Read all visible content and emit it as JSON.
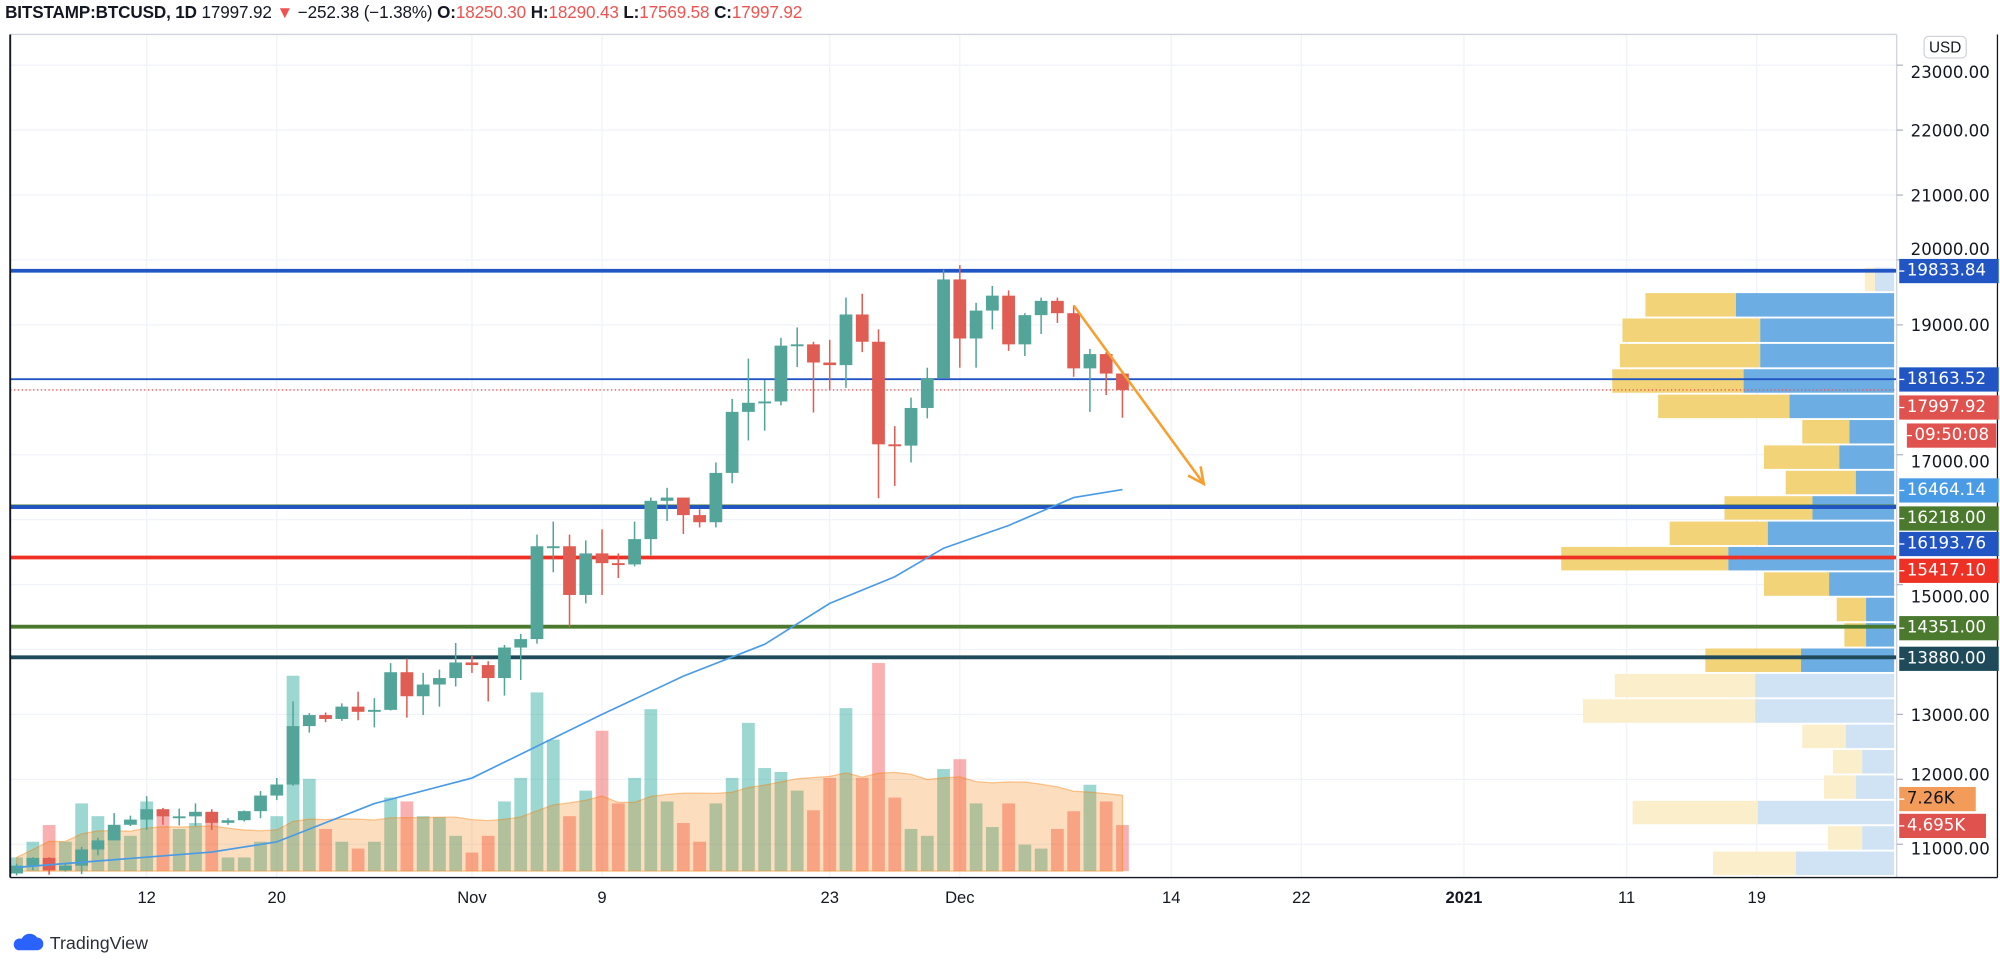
{
  "header": {
    "symbol": "BITSTAMP:BTCUSD, 1D",
    "last": "17997.92",
    "change_arrow": "▼",
    "change": "−252.38 (−1.38%)",
    "o_label": "O:",
    "o": "18250.30",
    "h_label": "H:",
    "h": "18290.43",
    "l_label": "L:",
    "l": "17569.58",
    "c_label": "C:",
    "c": "17997.92"
  },
  "currency_button": "USD",
  "brand": "TradingView",
  "colors": {
    "up": "#26a69a",
    "down": "#ef5350",
    "ma": "#4a9be6",
    "volume_ma": "#f57c00",
    "arrow": "#f5a030",
    "profile_up": "#f2d377",
    "profile_down": "#6caee3"
  },
  "chart_data": {
    "type": "candlestick",
    "price_axis": {
      "ticks": [
        "23000.00",
        "22000.00",
        "21000.00",
        "20000.00",
        "19000.00",
        "17000.00",
        "15000.00",
        "13000.00",
        "12000.00",
        "11000.00"
      ],
      "tick_values": [
        23000,
        22000,
        21000,
        20000,
        19000,
        17000,
        15000,
        13000,
        12000,
        11000
      ],
      "range": [
        10300,
        23500
      ]
    },
    "time_axis": [
      {
        "label": "12",
        "date": "2020-10-12"
      },
      {
        "label": "20",
        "date": "2020-10-20"
      },
      {
        "label": "Nov",
        "date": "2020-11-01"
      },
      {
        "label": "9",
        "date": "2020-11-09"
      },
      {
        "label": "23",
        "date": "2020-11-23"
      },
      {
        "label": "Dec",
        "date": "2020-12-01"
      },
      {
        "label": "14",
        "date": "2020-12-14"
      },
      {
        "label": "22",
        "date": "2020-12-22"
      },
      {
        "label": "2021",
        "date": "2021-01-01"
      },
      {
        "label": "11",
        "date": "2021-01-11"
      },
      {
        "label": "19",
        "date": "2021-01-19"
      }
    ],
    "grid": true,
    "candles_start": "2020-10-04",
    "candles": [
      [
        10550,
        10700,
        10520,
        10670
      ],
      [
        10670,
        10800,
        10600,
        10790
      ],
      [
        10790,
        10800,
        10530,
        10600
      ],
      [
        10600,
        10700,
        10580,
        10670
      ],
      [
        10670,
        10960,
        10540,
        10920
      ],
      [
        10920,
        11100,
        10830,
        11060
      ],
      [
        11060,
        11480,
        11060,
        11300
      ],
      [
        11300,
        11440,
        11280,
        11380
      ],
      [
        11380,
        11740,
        11220,
        11540
      ],
      [
        11540,
        11560,
        11300,
        11430
      ],
      [
        11430,
        11550,
        11290,
        11430
      ],
      [
        11430,
        11630,
        11280,
        11500
      ],
      [
        11500,
        11540,
        11220,
        11330
      ],
      [
        11330,
        11400,
        11300,
        11370
      ],
      [
        11370,
        11520,
        11350,
        11510
      ],
      [
        11510,
        11820,
        11400,
        11750
      ],
      [
        11750,
        12020,
        11680,
        11920
      ],
      [
        11920,
        13200,
        11900,
        12820
      ],
      [
        12820,
        13020,
        12720,
        12990
      ],
      [
        12990,
        13030,
        12880,
        12930
      ],
      [
        12930,
        13170,
        12900,
        13120
      ],
      [
        13120,
        13350,
        12910,
        13040
      ],
      [
        13040,
        13250,
        12800,
        13070
      ],
      [
        13070,
        13790,
        13060,
        13650
      ],
      [
        13650,
        13860,
        12950,
        13280
      ],
      [
        13280,
        13640,
        12990,
        13460
      ],
      [
        13460,
        13690,
        13120,
        13560
      ],
      [
        13560,
        14100,
        13430,
        13800
      ],
      [
        13800,
        13900,
        13640,
        13760
      ],
      [
        13760,
        13820,
        13200,
        13560
      ],
      [
        13560,
        14070,
        13290,
        14030
      ],
      [
        14030,
        14240,
        13530,
        14160
      ],
      [
        14160,
        15770,
        14090,
        15590
      ],
      [
        15590,
        15970,
        15190,
        15590
      ],
      [
        15590,
        15770,
        14350,
        14840
      ],
      [
        14840,
        15680,
        14710,
        15480
      ],
      [
        15480,
        15850,
        14840,
        15330
      ],
      [
        15330,
        15480,
        15100,
        15310
      ],
      [
        15310,
        15970,
        15280,
        15700
      ],
      [
        15700,
        16340,
        15450,
        16290
      ],
      [
        16290,
        16490,
        15980,
        16340
      ],
      [
        16340,
        16340,
        15780,
        16070
      ],
      [
        16070,
        16160,
        15880,
        15960
      ],
      [
        15960,
        16880,
        15880,
        16720
      ],
      [
        16720,
        17860,
        16560,
        17660
      ],
      [
        17660,
        18480,
        17220,
        17800
      ],
      [
        17800,
        18150,
        17370,
        17820
      ],
      [
        17820,
        18800,
        17760,
        18680
      ],
      [
        18680,
        18960,
        18350,
        18700
      ],
      [
        18700,
        18740,
        17650,
        18420
      ],
      [
        18420,
        18770,
        18000,
        18380
      ],
      [
        18380,
        19420,
        18030,
        19160
      ],
      [
        19160,
        19480,
        18580,
        18740
      ],
      [
        18740,
        18930,
        16330,
        17160
      ],
      [
        17160,
        17440,
        16520,
        17140
      ],
      [
        17140,
        17880,
        16880,
        17720
      ],
      [
        17720,
        18340,
        17560,
        18180
      ],
      [
        18180,
        19850,
        18180,
        19700
      ],
      [
        19700,
        19920,
        18340,
        18790
      ],
      [
        18790,
        19340,
        18340,
        19220
      ],
      [
        19220,
        19600,
        18930,
        19450
      ],
      [
        19450,
        19530,
        18600,
        18700
      ],
      [
        18700,
        19180,
        18520,
        19150
      ],
      [
        19150,
        19420,
        18860,
        19370
      ],
      [
        19370,
        19420,
        19030,
        19180
      ],
      [
        19180,
        19300,
        18200,
        18330
      ],
      [
        18330,
        18630,
        17660,
        18550
      ],
      [
        18550,
        18580,
        17920,
        18250
      ],
      [
        18250.3,
        18290.43,
        17569.58,
        17997.92
      ]
    ],
    "volume_k": [
      1.4,
      3.0,
      4.7,
      3.0,
      6.9,
      5.6,
      4.3,
      3.6,
      7.1,
      5.6,
      4.3,
      4.9,
      5.6,
      1.4,
      1.4,
      3.0,
      5.6,
      19.9,
      9.4,
      4.3,
      3.0,
      2.3,
      3.0,
      7.5,
      7.1,
      5.6,
      5.5,
      3.6,
      1.9,
      3.6,
      7.1,
      9.5,
      18.2,
      13.4,
      5.6,
      8.2,
      14.3,
      6.9,
      9.5,
      16.5,
      7.1,
      4.9,
      3.0,
      6.9,
      9.5,
      15.1,
      10.5,
      10.1,
      8.2,
      6.2,
      9.5,
      16.6,
      9.5,
      21.2,
      7.5,
      4.3,
      3.6,
      10.4,
      11.4,
      6.9,
      4.5,
      6.9,
      2.7,
      2.3,
      4.3,
      6.1,
      8.8,
      7.1,
      4.695
    ],
    "moving_average": [
      [
        "2020-10-04",
        10644
      ],
      [
        "2020-10-16",
        10880
      ],
      [
        "2020-10-20",
        11037
      ],
      [
        "2020-10-26",
        11627
      ],
      [
        "2020-11-01",
        12020
      ],
      [
        "2020-11-05",
        12510
      ],
      [
        "2020-11-09",
        13000
      ],
      [
        "2020-11-14",
        13590
      ],
      [
        "2020-11-19",
        14080
      ],
      [
        "2020-11-23",
        14710
      ],
      [
        "2020-11-27",
        15120
      ],
      [
        "2020-11-30",
        15560
      ],
      [
        "2020-12-04",
        15910
      ],
      [
        "2020-12-08",
        16340
      ],
      [
        "2020-12-11",
        16464.14
      ]
    ],
    "volume_profile": {
      "top_price": 19900,
      "row_step": 391,
      "rows": [
        [
          8,
          15,
          1
        ],
        [
          71,
          124,
          0
        ],
        [
          108,
          105,
          0
        ],
        [
          110,
          105,
          0
        ],
        [
          103,
          118,
          0
        ],
        [
          103,
          82,
          0
        ],
        [
          37,
          35,
          0
        ],
        [
          59,
          43,
          0
        ],
        [
          55,
          30,
          0
        ],
        [
          69,
          64,
          0
        ],
        [
          77,
          99,
          0
        ],
        [
          131,
          130,
          0
        ],
        [
          51,
          51,
          0
        ],
        [
          23,
          22,
          0
        ],
        [
          17,
          22,
          0
        ],
        [
          75,
          73,
          0
        ],
        [
          110,
          109,
          1
        ],
        [
          135,
          109,
          1
        ],
        [
          34,
          38,
          1
        ],
        [
          23,
          25,
          1
        ],
        [
          25,
          30,
          1
        ],
        [
          98,
          107,
          1
        ],
        [
          27,
          25,
          1
        ],
        [
          65,
          77,
          1
        ]
      ]
    },
    "levels": [
      {
        "price": 19833.84,
        "color": "#2255c4",
        "label": "19833.84"
      },
      {
        "price": 18163.52,
        "color": "#2255c4",
        "label": "18163.52",
        "thin": true
      },
      {
        "price": 16218.0,
        "color": "#4b7a2f",
        "label": "16218.00",
        "thin": true
      },
      {
        "price": 16193.76,
        "color": "#2255c4",
        "label": "16193.76"
      },
      {
        "price": 15417.1,
        "color": "#ee3124",
        "label": "15417.10"
      },
      {
        "price": 14351.0,
        "color": "#4b7a2f",
        "label": "14351.00"
      },
      {
        "price": 13880.0,
        "color": "#1f4a5a",
        "label": "13880.00"
      }
    ],
    "last_price": {
      "label": "17997.92",
      "countdown": "09:50:08",
      "color": "#e0524e"
    },
    "ma_label": {
      "label": "16464.14",
      "color": "#4a9be6"
    },
    "volume_ma_label": {
      "label": "7.26K",
      "color": "#f39c5a"
    },
    "volume_label": {
      "label": "4.695K",
      "color": "#e0524e"
    },
    "arrow": {
      "from": [
        "2020-12-08",
        19300
      ],
      "to": [
        "2020-12-16",
        16550
      ]
    }
  }
}
